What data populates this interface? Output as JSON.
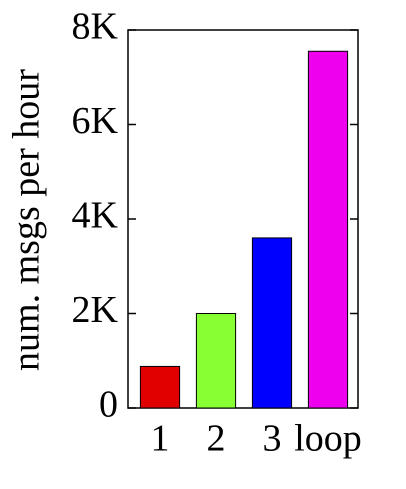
{
  "chart_data": {
    "type": "bar",
    "y_label": "num. msgs per hour",
    "categories": [
      "1",
      "2",
      "3",
      "loop"
    ],
    "values": [
      880,
      2000,
      3600,
      7550
    ],
    "colors": [
      "#e00000",
      "#88ff33",
      "#0000ff",
      "#ee00ee"
    ],
    "ylim": [
      0,
      8000
    ],
    "yticks": [
      0,
      {
        "value": 2000,
        "label": "2K"
      },
      {
        "value": 4000,
        "label": "4K"
      },
      {
        "value": 6000,
        "label": "6K"
      },
      {
        "value": 8000,
        "label": "8K"
      }
    ]
  }
}
